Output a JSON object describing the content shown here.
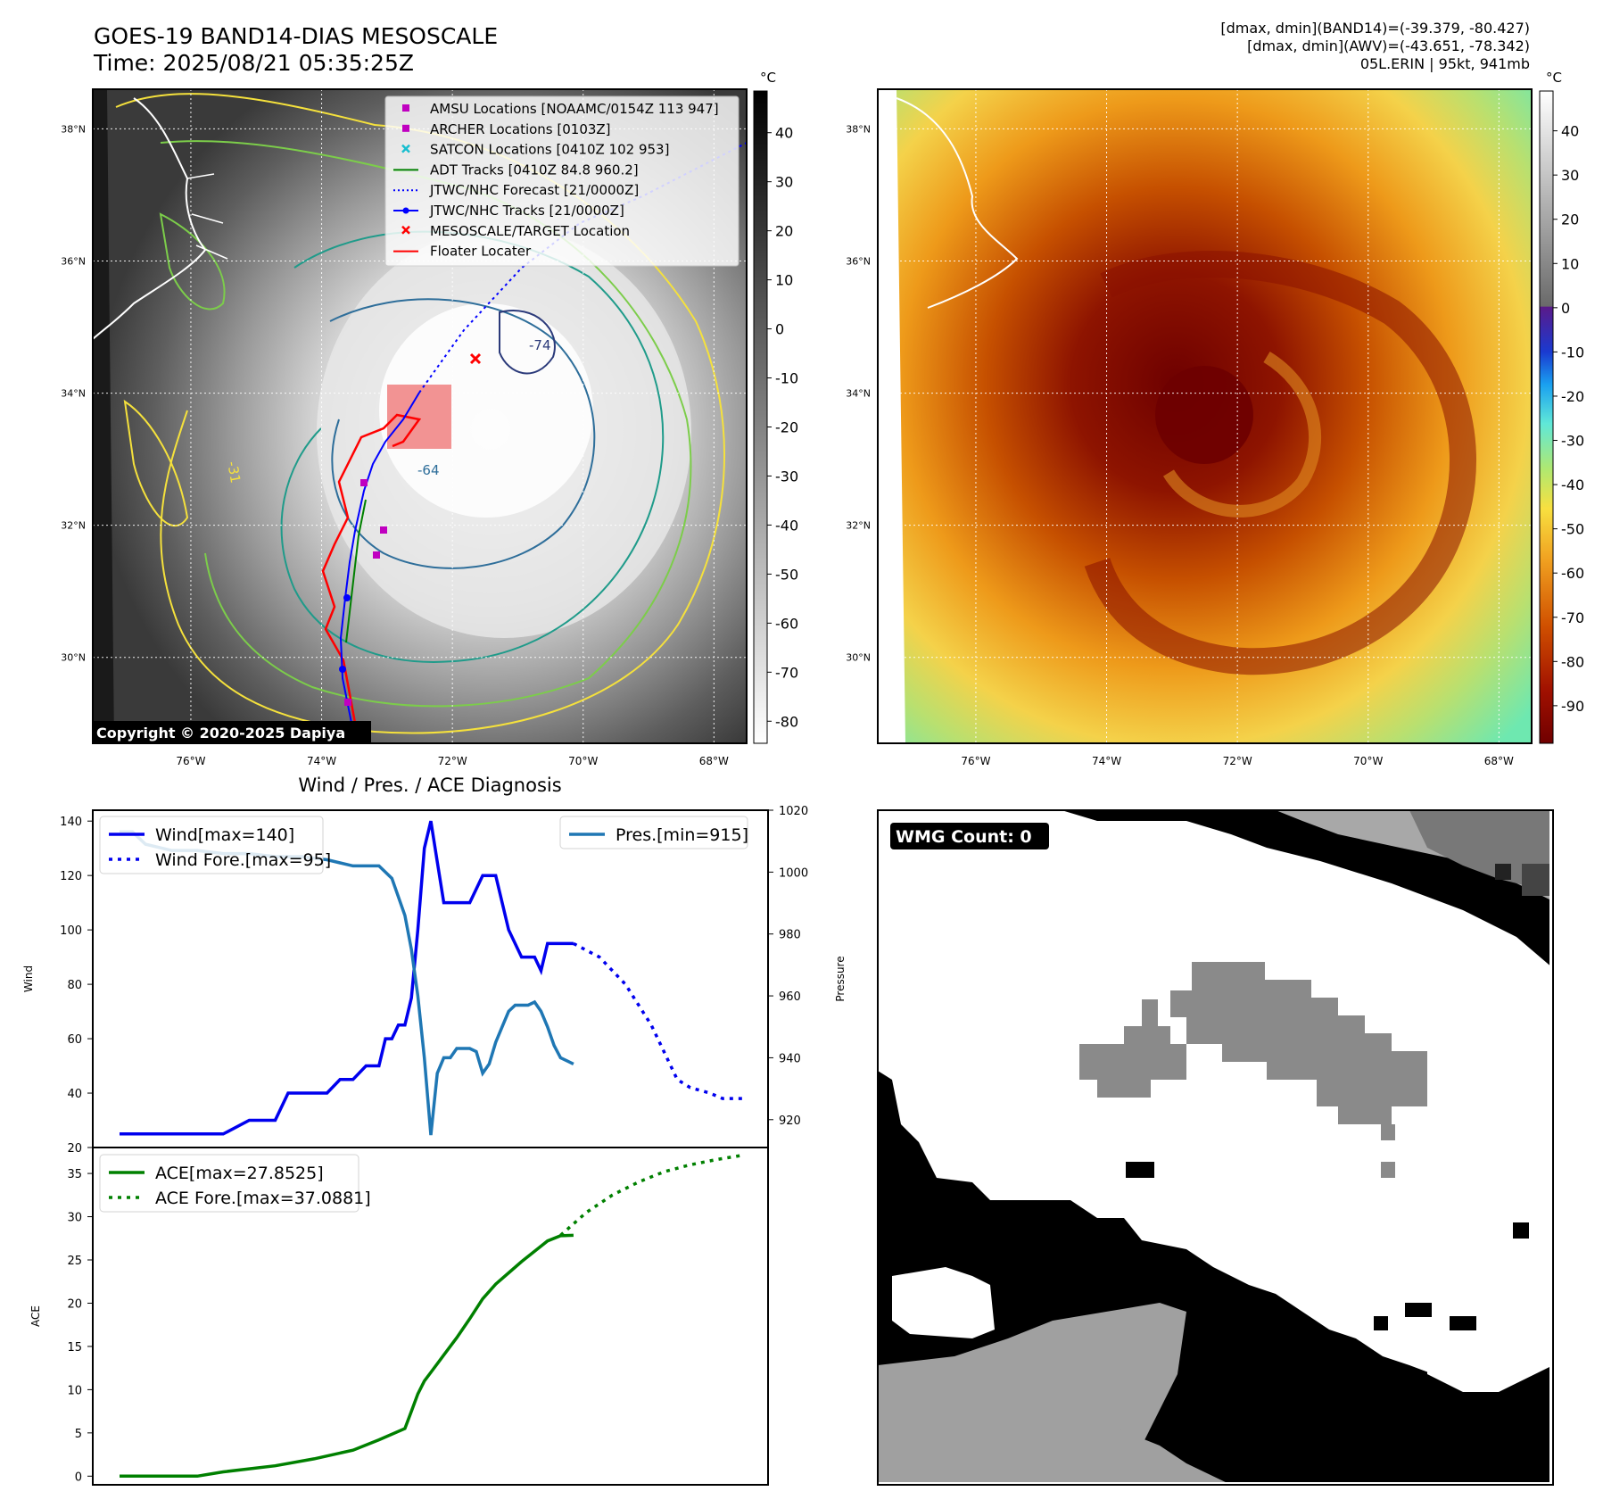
{
  "header": {
    "title_line1": "GOES-19 BAND14-DIAS MESOSCALE",
    "title_line2": "Time: 2025/08/21 05:35:25Z",
    "stats_line1": "[dmax, dmin](BAND14)=(-39.379, -80.427)",
    "stats_line2": "[dmax, dmin](AWV)=(-43.651, -78.342)",
    "stats_line3": "05L.ERIN | 95kt, 941mb"
  },
  "maps": {
    "lat_labels": [
      "38°N",
      "36°N",
      "34°N",
      "32°N",
      "30°N"
    ],
    "lat_values": [
      38,
      36,
      34,
      32,
      30
    ],
    "lon_labels": [
      "76°W",
      "74°W",
      "72°W",
      "70°W",
      "68°W"
    ],
    "lon_values": [
      -76,
      -74,
      -72,
      -70,
      -68
    ],
    "lat_range": [
      28.7,
      38.6
    ],
    "lon_range": [
      -77.5,
      -67.5
    ],
    "copyright": "Copyright © 2020-2025 Dapiya",
    "contour_labels": [
      "-64",
      "-31",
      "-74"
    ],
    "colorbar_unit": "°C",
    "left_colorbar_ticks": [
      40,
      30,
      20,
      10,
      0,
      -10,
      -20,
      -30,
      -40,
      -50,
      -60,
      -70,
      -80
    ],
    "right_colorbar_ticks": [
      40,
      30,
      20,
      10,
      0,
      -10,
      -20,
      -30,
      -40,
      -50,
      -60,
      -70,
      -80,
      -90
    ],
    "colors": {
      "contour_yellow": "#f5e13c",
      "contour_lightgreen": "#7ccd4a",
      "contour_teal": "#1f9b8a",
      "contour_blue": "#2e6e9a",
      "contour_navy": "#2b3a7a",
      "track_red": "#ff0000",
      "track_blue": "#0000ff",
      "marker_magenta": "#c000c0"
    },
    "legend": [
      {
        "label": "AMSU Locations [NOAAMC/0154Z 113 947]",
        "symbol": "square",
        "color": "#c000c0"
      },
      {
        "label": "ARCHER Locations [0103Z]",
        "symbol": "square",
        "color": "#c000c0"
      },
      {
        "label": "SATCON Locations [0410Z 102 953]",
        "symbol": "x",
        "color": "#17becf"
      },
      {
        "label": "ADT Tracks [0410Z 84.8 960.2]",
        "symbol": "line",
        "color": "#008000"
      },
      {
        "label": "JTWC/NHC Forecast [21/0000Z]",
        "symbol": "dotted",
        "color": "#0000ff"
      },
      {
        "label": "JTWC/NHC Tracks [21/0000Z]",
        "symbol": "line-dot",
        "color": "#0000ff"
      },
      {
        "label": "MESOSCALE/TARGET Location",
        "symbol": "x",
        "color": "#ff0000"
      },
      {
        "label": "Floater Locater",
        "symbol": "line",
        "color": "#ff0000"
      }
    ]
  },
  "chart_data": [
    {
      "type": "line",
      "title": "Wind / Pres. / ACE Diagnosis",
      "ylabel": "Wind",
      "ylabel_right": "Pressure",
      "ylim": [
        20,
        144
      ],
      "ylim_right": [
        911,
        1020
      ],
      "yticks": [
        20,
        40,
        60,
        80,
        100,
        120,
        140
      ],
      "yticks_right": [
        920,
        940,
        960,
        980,
        1000,
        1020
      ],
      "legend_left": [
        "Wind[max=140]",
        "Wind Fore.[max=95]"
      ],
      "legend_right": [
        "Pres.[min=915]"
      ],
      "series": [
        {
          "name": "Wind[max=140]",
          "color": "#0000ee",
          "style": "solid",
          "x": [
            0,
            8,
            16,
            20,
            24,
            26,
            32,
            34,
            36,
            38,
            40,
            41,
            42,
            43,
            44,
            45,
            46,
            47,
            48,
            49,
            50,
            52,
            54,
            56,
            58,
            60,
            62,
            63,
            64,
            65,
            66,
            68,
            70
          ],
          "values": [
            25,
            25,
            25,
            30,
            30,
            40,
            40,
            45,
            45,
            50,
            50,
            60,
            60,
            65,
            65,
            75,
            100,
            130,
            140,
            125,
            110,
            110,
            110,
            120,
            120,
            100,
            90,
            90,
            90,
            85,
            95,
            95,
            95
          ]
        },
        {
          "name": "Wind Fore.[max=95]",
          "color": "#0000ee",
          "style": "dotted",
          "x": [
            70,
            74,
            78,
            82,
            86,
            88,
            91,
            93,
            96
          ],
          "values": [
            95,
            90,
            80,
            65,
            45,
            42,
            40,
            38,
            38
          ]
        },
        {
          "name": "Pres.[min=915]",
          "color": "#1f77b4",
          "style": "solid",
          "axis": "right",
          "x": [
            0,
            2,
            4,
            6,
            8,
            12,
            16,
            20,
            24,
            28,
            32,
            34,
            36,
            38,
            40,
            42,
            44,
            45,
            46,
            47,
            48,
            49,
            50,
            51,
            52,
            53,
            54,
            55,
            56,
            57,
            58,
            59,
            60,
            61,
            62,
            63,
            64,
            65,
            66,
            67,
            68,
            70
          ],
          "values": [
            1013,
            1013,
            1009,
            1008,
            1007,
            1007,
            1006,
            1006,
            1005,
            1005,
            1004,
            1003,
            1002,
            1002,
            1002,
            998,
            986,
            975,
            960,
            940,
            915,
            935,
            940,
            940,
            943,
            943,
            943,
            942,
            935,
            938,
            945,
            950,
            955,
            957,
            957,
            957,
            958,
            955,
            950,
            944,
            940,
            938
          ]
        }
      ]
    },
    {
      "type": "line",
      "ylabel": "ACE",
      "ylim": [
        -1,
        38
      ],
      "yticks": [
        0,
        5,
        10,
        15,
        20,
        25,
        30,
        35
      ],
      "legend": [
        "ACE[max=27.8525]",
        "ACE Fore.[max=37.0881]"
      ],
      "series": [
        {
          "name": "ACE[max=27.8525]",
          "color": "#008000",
          "style": "solid",
          "x": [
            0,
            12,
            16,
            24,
            30,
            36,
            40,
            44,
            45,
            46,
            47,
            48,
            50,
            52,
            54,
            56,
            58,
            60,
            62,
            64,
            66,
            68,
            70
          ],
          "values": [
            0,
            0,
            0.5,
            1.2,
            2,
            3,
            4.2,
            5.5,
            7.5,
            9.5,
            11,
            12,
            14,
            16,
            18.2,
            20.5,
            22.2,
            23.5,
            24.8,
            26,
            27.2,
            27.8,
            27.85
          ]
        },
        {
          "name": "ACE Fore.[max=37.0881]",
          "color": "#008000",
          "style": "dotted",
          "x": [
            68,
            72,
            76,
            80,
            84,
            88,
            92,
            96
          ],
          "values": [
            27.85,
            30.5,
            32.5,
            34,
            35.2,
            36,
            36.6,
            37.09
          ]
        }
      ]
    }
  ],
  "wmg": {
    "label": "WMG Count: 0"
  }
}
